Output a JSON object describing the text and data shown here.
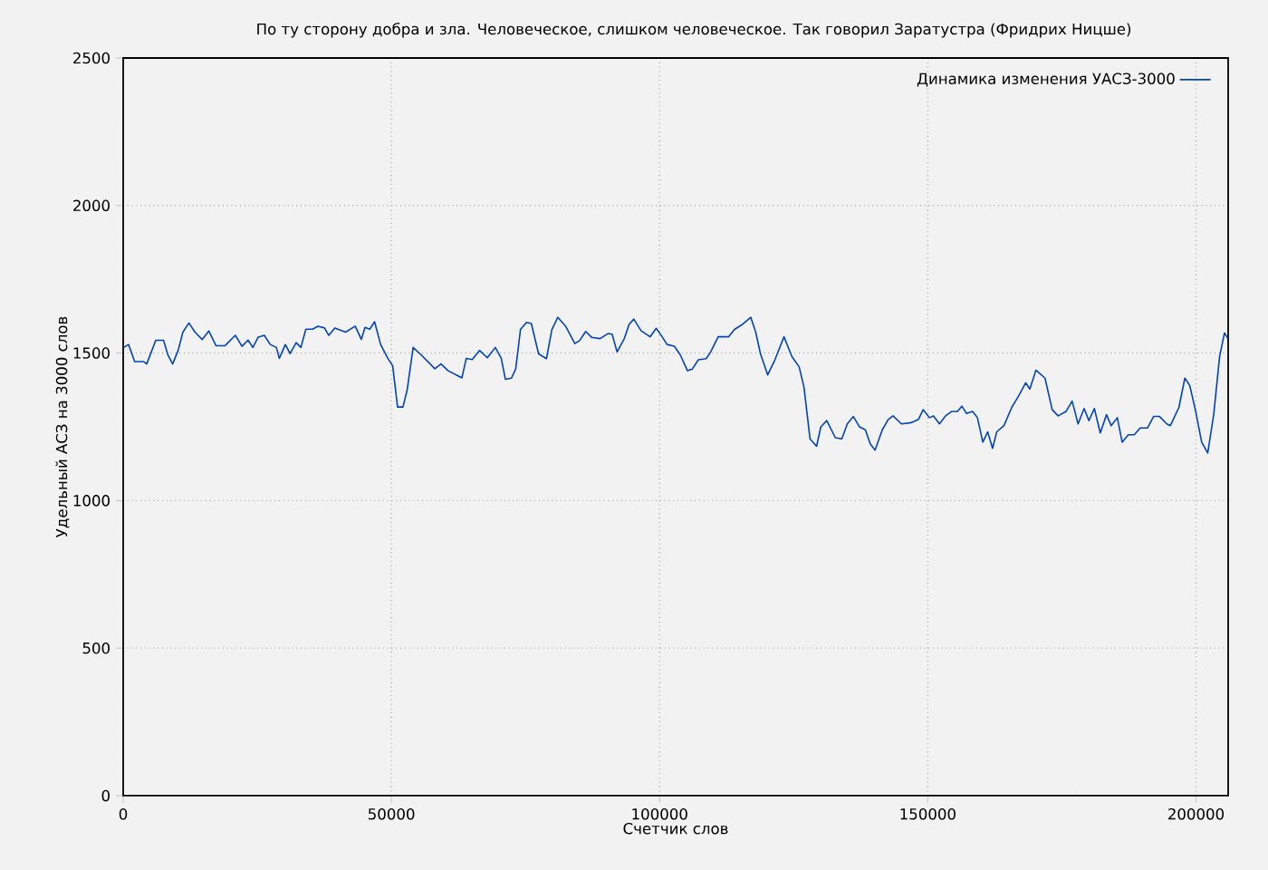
{
  "chart_data": {
    "type": "line",
    "title": "По ту сторону добра и зла. Человеческое, слишком человеческое. Так говорил Заратустра (Фридрих Ницше)",
    "xlabel": "Счетчик слов",
    "ylabel": "Удельный АСЗ на 3000 слов",
    "xlim": [
      0,
      206000
    ],
    "ylim": [
      0,
      2500
    ],
    "xticks": [
      0,
      50000,
      100000,
      150000,
      200000
    ],
    "yticks": [
      0,
      500,
      1000,
      1500,
      2000,
      2500
    ],
    "grid": true,
    "legend": "top right",
    "marker": "none",
    "line_style": "solid",
    "series": [
      {
        "name": "Динамика изменения УАСЗ-3000",
        "color": "#0044bb",
        "x": [
          100,
          1000,
          2130,
          3820,
          4380,
          6070,
          7530,
          8330,
          9220,
          10240,
          11130,
          12250,
          13380,
          14740,
          15960,
          17300,
          18990,
          20900,
          22150,
          23270,
          24170,
          25180,
          26300,
          27420,
          28550,
          29110,
          30230,
          31110,
          32250,
          33130,
          34050,
          35300,
          36310,
          37530,
          38330,
          39450,
          41470,
          43260,
          44400,
          45080,
          45960,
          46870,
          47990,
          49330,
          50240,
          51150,
          52160,
          52940,
          54050,
          55530,
          58100,
          59240,
          60590,
          63150,
          63960,
          65070,
          66420,
          67880,
          69370,
          70480,
          71260,
          72390,
          73170,
          74070,
          75190,
          76090,
          77440,
          78910,
          79920,
          81030,
          82520,
          84200,
          85080,
          86230,
          87340,
          88920,
          90370,
          91150,
          92070,
          93420,
          94310,
          95190,
          96540,
          98220,
          99370,
          100480,
          101390,
          102740,
          103850,
          105200,
          106110,
          107220,
          108680,
          109470,
          110920,
          112850,
          113970,
          115430,
          117010,
          117920,
          118800,
          120150,
          121500,
          123190,
          124670,
          126020,
          126920,
          128050,
          129270,
          130060,
          131170,
          132760,
          133970,
          134990,
          136130,
          137250,
          138360,
          139270,
          140170,
          141520,
          142630,
          143530,
          145090,
          146910,
          148260,
          149140,
          150290,
          151060,
          152170,
          153310,
          154430,
          155540,
          156350,
          157230,
          158360,
          159250,
          160260,
          161170,
          162070,
          162860,
          164200,
          165660,
          167010,
          168250,
          169030,
          170160,
          171850,
          173200,
          174310,
          175770,
          176910,
          178020,
          179140,
          180040,
          181050,
          182160,
          183320,
          184190,
          185330,
          186240,
          187380,
          188490,
          189600,
          190950,
          192100,
          193210,
          194560,
          195230,
          196820,
          197930,
          198840,
          199950,
          201060,
          202190,
          203300,
          204410,
          205310,
          205900
        ],
        "values": [
          1519,
          1529,
          1471,
          1471,
          1463,
          1543,
          1543,
          1494,
          1463,
          1509,
          1571,
          1602,
          1571,
          1546,
          1575,
          1525,
          1525,
          1560,
          1523,
          1544,
          1519,
          1554,
          1560,
          1529,
          1519,
          1482,
          1529,
          1498,
          1535,
          1519,
          1581,
          1581,
          1591,
          1585,
          1560,
          1585,
          1571,
          1591,
          1546,
          1587,
          1581,
          1606,
          1529,
          1482,
          1457,
          1317,
          1317,
          1375,
          1519,
          1494,
          1447,
          1463,
          1440,
          1416,
          1482,
          1478,
          1509,
          1484,
          1519,
          1482,
          1411,
          1415,
          1446,
          1580,
          1604,
          1600,
          1497,
          1481,
          1580,
          1621,
          1590,
          1532,
          1542,
          1573,
          1553,
          1549,
          1566,
          1564,
          1504,
          1549,
          1597,
          1615,
          1576,
          1555,
          1584,
          1555,
          1529,
          1523,
          1494,
          1440,
          1446,
          1477,
          1481,
          1502,
          1555,
          1555,
          1580,
          1597,
          1621,
          1571,
          1498,
          1426,
          1477,
          1555,
          1488,
          1453,
          1384,
          1209,
          1184,
          1250,
          1271,
          1213,
          1209,
          1260,
          1285,
          1250,
          1240,
          1192,
          1171,
          1240,
          1275,
          1287,
          1260,
          1264,
          1275,
          1308,
          1281,
          1287,
          1260,
          1287,
          1302,
          1302,
          1320,
          1295,
          1302,
          1281,
          1198,
          1233,
          1177,
          1233,
          1254,
          1316,
          1357,
          1399,
          1378,
          1442,
          1415,
          1308,
          1287,
          1302,
          1337,
          1260,
          1312,
          1271,
          1312,
          1229,
          1291,
          1254,
          1281,
          1198,
          1223,
          1223,
          1246,
          1246,
          1285,
          1285,
          1260,
          1254,
          1316,
          1415,
          1390,
          1302,
          1198,
          1161,
          1291,
          1489,
          1568,
          1551
        ]
      }
    ]
  }
}
